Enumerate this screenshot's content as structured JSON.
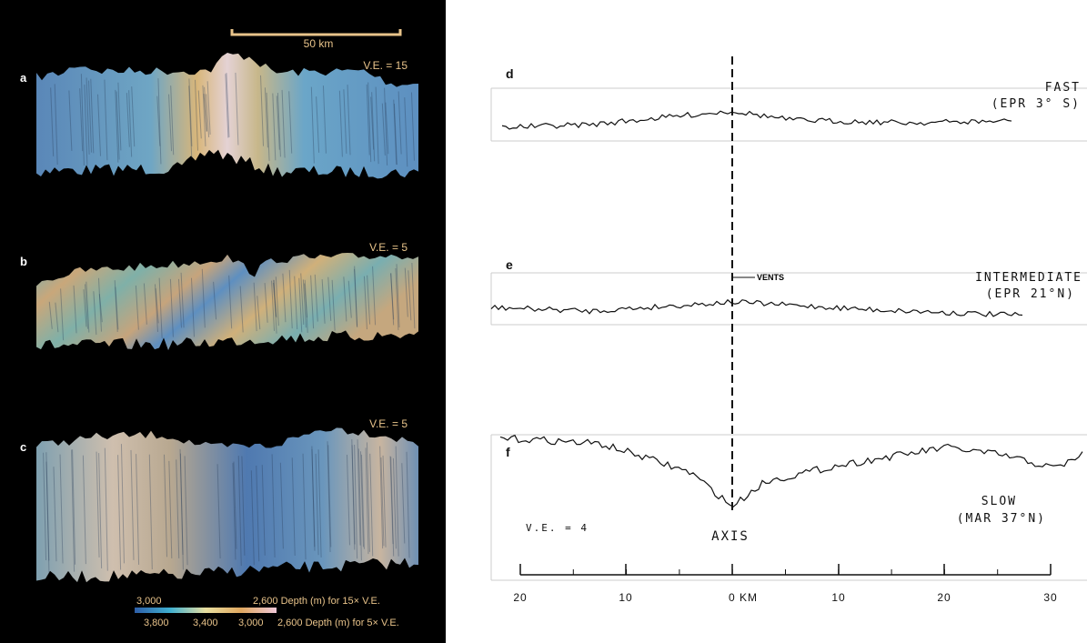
{
  "left": {
    "scale_bar": "50 km",
    "panels": [
      {
        "label": "a",
        "ve": "V.E. = 15"
      },
      {
        "label": "b",
        "ve": "V.E. = 5"
      },
      {
        "label": "c",
        "ve": "V.E. = 5"
      }
    ],
    "legend": {
      "row1": [
        "3,000",
        "2,600 Depth (m) for 15× V.E."
      ],
      "row2": [
        "3,800",
        "3,400",
        "3,000",
        "2,600 Depth (m) for 5× V.E."
      ]
    }
  },
  "right": {
    "panels": [
      {
        "label": "d",
        "name": "FAST",
        "location": "(EPR 3° S)"
      },
      {
        "label": "e",
        "name": "INTERMEDIATE",
        "location": "(EPR 21°N)",
        "note": "VENTS"
      },
      {
        "label": "f",
        "name": "SLOW",
        "location": "(MAR 37°N)",
        "note": "AXIS"
      }
    ],
    "ve": "V.E. = 4",
    "axis_labels": [
      "20",
      "10",
      "0 KM",
      "10",
      "20",
      "30"
    ]
  }
}
